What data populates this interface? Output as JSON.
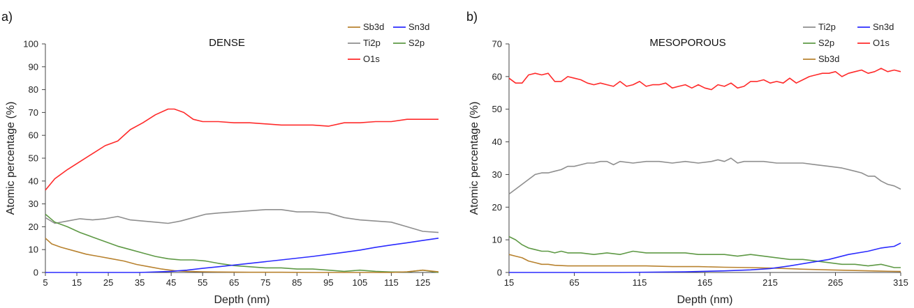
{
  "colors": {
    "Sb3d": "#b8822f",
    "Sn3d": "#2b2bff",
    "Ti2p": "#8e8e8e",
    "S2p": "#5e9945",
    "O1s": "#ff2a2a"
  },
  "chart_data": [
    {
      "type": "line",
      "panel_label": "a)",
      "title": "DENSE",
      "xlabel": "Depth (nm)",
      "ylabel": "Atomic percentage (%)",
      "xlim": [
        5,
        130
      ],
      "ylim": [
        0,
        100
      ],
      "x_ticks": [
        5,
        15,
        25,
        35,
        45,
        55,
        65,
        75,
        85,
        95,
        105,
        115,
        125
      ],
      "y_ticks": [
        0,
        10,
        20,
        30,
        40,
        50,
        60,
        70,
        80,
        90,
        100
      ],
      "legend_position": "top-right",
      "legend": [
        "Sb3d",
        "Sn3d",
        "Ti2p",
        "S2p",
        "O1s"
      ],
      "series": [
        {
          "name": "O1s",
          "color_key": "O1s",
          "x": [
            5,
            8,
            12,
            16,
            20,
            24,
            28,
            32,
            36,
            40,
            44,
            46,
            49,
            52,
            55,
            60,
            65,
            70,
            75,
            80,
            85,
            90,
            95,
            100,
            105,
            110,
            115,
            120,
            125,
            130
          ],
          "y": [
            36,
            41,
            45,
            48.5,
            52,
            55.5,
            57.5,
            62.5,
            65.5,
            69,
            71.5,
            71.5,
            70,
            67,
            66,
            66,
            65.5,
            65.5,
            65,
            64.5,
            64.5,
            64.5,
            64,
            65.5,
            65.5,
            66,
            66,
            67,
            67,
            67
          ]
        },
        {
          "name": "Ti2p",
          "color_key": "Ti2p",
          "x": [
            5,
            8,
            12,
            16,
            20,
            24,
            28,
            32,
            36,
            40,
            44,
            48,
            52,
            56,
            60,
            65,
            70,
            75,
            80,
            85,
            90,
            95,
            100,
            105,
            110,
            115,
            120,
            125,
            130
          ],
          "y": [
            24,
            21.5,
            22.5,
            23.5,
            23,
            23.5,
            24.5,
            23,
            22.5,
            22,
            21.5,
            22.5,
            24,
            25.5,
            26,
            26.5,
            27,
            27.5,
            27.5,
            26.5,
            26.5,
            26,
            24,
            23,
            22.5,
            22,
            20,
            18,
            17.5
          ]
        },
        {
          "name": "S2p",
          "color_key": "S2p",
          "x": [
            5,
            8,
            12,
            16,
            20,
            24,
            28,
            32,
            36,
            40,
            44,
            48,
            52,
            56,
            60,
            65,
            70,
            75,
            80,
            85,
            90,
            95,
            100,
            105,
            110,
            115,
            120,
            125,
            130
          ],
          "y": [
            25.5,
            22,
            20,
            17.5,
            15.5,
            13.5,
            11.5,
            10,
            8.5,
            7,
            6,
            5.5,
            5.5,
            5,
            4,
            3,
            2.5,
            2,
            2,
            1.5,
            1.5,
            1,
            0.5,
            1,
            0.5,
            0.2,
            0.2,
            1,
            0
          ]
        },
        {
          "name": "Sb3d",
          "color_key": "Sb3d",
          "x": [
            5,
            7,
            10,
            14,
            18,
            22,
            26,
            30,
            34,
            38,
            42,
            46,
            50,
            55,
            60,
            70,
            80,
            90,
            100,
            110,
            115,
            120,
            125,
            130
          ],
          "y": [
            15,
            12.5,
            11,
            9.5,
            8,
            7,
            6,
            5,
            3.5,
            2.5,
            1.5,
            0.8,
            0.5,
            0.3,
            0.2,
            0.1,
            0.1,
            0,
            0,
            0,
            0,
            0.3,
            1,
            0.3
          ]
        },
        {
          "name": "Sn3d",
          "color_key": "Sn3d",
          "x": [
            5,
            20,
            35,
            45,
            50,
            55,
            60,
            70,
            80,
            90,
            100,
            105,
            110,
            115,
            120,
            125,
            130
          ],
          "y": [
            0,
            0,
            0,
            0.5,
            1,
            1.8,
            2.5,
            4,
            5.5,
            7,
            8.8,
            9.8,
            11,
            12,
            13,
            14,
            15
          ]
        }
      ]
    },
    {
      "type": "line",
      "panel_label": "b)",
      "title": "MESOPOROUS",
      "xlabel": "Depth (nm)",
      "ylabel": "Atomic percentage (%)",
      "xlim": [
        15,
        315
      ],
      "ylim": [
        0,
        70
      ],
      "x_ticks": [
        15,
        65,
        115,
        165,
        215,
        265,
        315
      ],
      "y_ticks": [
        0,
        10,
        20,
        30,
        40,
        50,
        60,
        70
      ],
      "legend_position": "top-right",
      "legend": [
        "Ti2p",
        "Sn3d",
        "S2p",
        "O1s",
        "Sb3d"
      ],
      "series": [
        {
          "name": "O1s",
          "color_key": "O1s",
          "x": [
            15,
            20,
            25,
            30,
            35,
            40,
            45,
            50,
            55,
            60,
            65,
            70,
            75,
            80,
            85,
            90,
            95,
            100,
            105,
            110,
            115,
            120,
            125,
            130,
            135,
            140,
            145,
            150,
            155,
            160,
            165,
            170,
            175,
            180,
            185,
            190,
            195,
            200,
            205,
            210,
            215,
            220,
            225,
            230,
            235,
            240,
            245,
            250,
            255,
            260,
            265,
            270,
            275,
            280,
            285,
            290,
            295,
            300,
            305,
            310,
            315
          ],
          "y": [
            59.5,
            58,
            58,
            60.5,
            61,
            60.5,
            61,
            58.5,
            58.5,
            60,
            59.5,
            59,
            58,
            57.5,
            58,
            57.5,
            57,
            58.5,
            57,
            57.5,
            58.5,
            57,
            57.5,
            57.5,
            58,
            56.5,
            57,
            57.5,
            56.5,
            57.5,
            56.5,
            56,
            57.5,
            57,
            58,
            56.5,
            57,
            58.5,
            58.5,
            59,
            58,
            58.5,
            58,
            59.5,
            58,
            59,
            60,
            60.5,
            61,
            61,
            61.5,
            60,
            61,
            61.5,
            62,
            61,
            61.5,
            62.5,
            61.5,
            62,
            61.5
          ]
        },
        {
          "name": "Ti2p",
          "color_key": "Ti2p",
          "x": [
            15,
            20,
            25,
            30,
            35,
            40,
            45,
            50,
            55,
            60,
            65,
            70,
            75,
            80,
            85,
            90,
            95,
            100,
            110,
            120,
            130,
            140,
            150,
            160,
            170,
            175,
            180,
            185,
            190,
            195,
            200,
            210,
            220,
            230,
            240,
            250,
            260,
            270,
            280,
            285,
            290,
            295,
            300,
            305,
            310,
            315
          ],
          "y": [
            24,
            25.5,
            27,
            28.5,
            30,
            30.5,
            30.5,
            31,
            31.5,
            32.5,
            32.5,
            33,
            33.5,
            33.5,
            34,
            34,
            33,
            34,
            33.5,
            34,
            34,
            33.5,
            34,
            33.5,
            34,
            34.5,
            34,
            35,
            33.5,
            34,
            34,
            34,
            33.5,
            33.5,
            33.5,
            33,
            32.5,
            32,
            31,
            30.5,
            29.5,
            29.5,
            28,
            27,
            26.5,
            25.5
          ]
        },
        {
          "name": "S2p",
          "color_key": "S2p",
          "x": [
            15,
            20,
            25,
            30,
            35,
            40,
            45,
            50,
            55,
            60,
            70,
            80,
            90,
            100,
            110,
            120,
            130,
            140,
            150,
            160,
            170,
            180,
            190,
            200,
            210,
            220,
            230,
            240,
            250,
            260,
            270,
            280,
            290,
            300,
            305,
            310,
            315
          ],
          "y": [
            11,
            10,
            8.5,
            7.5,
            7,
            6.5,
            6.5,
            6,
            6.5,
            6,
            6,
            5.5,
            6,
            5.5,
            6.5,
            6,
            6,
            6,
            6,
            5.5,
            5.5,
            5.5,
            5,
            5.5,
            5,
            4.5,
            4,
            4,
            3.5,
            3,
            2.5,
            2.5,
            2,
            2.5,
            2,
            1.5,
            1.5
          ]
        },
        {
          "name": "Sb3d",
          "color_key": "Sb3d",
          "x": [
            15,
            20,
            25,
            30,
            35,
            40,
            45,
            50,
            60,
            80,
            100,
            120,
            140,
            160,
            180,
            200,
            220,
            240,
            260,
            280,
            300,
            315
          ],
          "y": [
            5.5,
            5,
            4.5,
            3.5,
            3,
            2.5,
            2.5,
            2.2,
            2,
            2,
            2,
            2,
            1.8,
            1.8,
            1.6,
            1.5,
            1.3,
            1,
            0.8,
            0.6,
            0.4,
            0.3
          ]
        },
        {
          "name": "Sn3d",
          "color_key": "Sn3d",
          "x": [
            15,
            100,
            150,
            180,
            200,
            215,
            230,
            245,
            260,
            275,
            290,
            300,
            310,
            315
          ],
          "y": [
            0,
            0,
            0.2,
            0.5,
            0.8,
            1.2,
            2,
            3,
            4,
            5.5,
            6.5,
            7.5,
            8,
            9
          ]
        }
      ]
    }
  ]
}
